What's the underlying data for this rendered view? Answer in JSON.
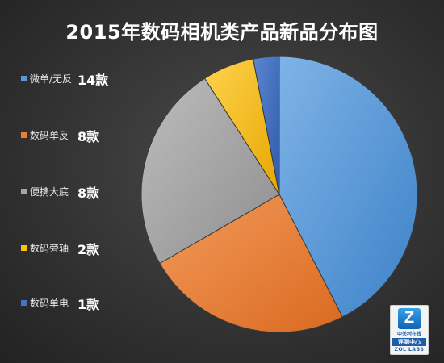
{
  "chart_data": {
    "type": "pie",
    "title": "2015年数码相机类产品新品分布图",
    "categories": [
      "微单/无反",
      "数码单反",
      "便携大底",
      "数码旁轴",
      "数码单电"
    ],
    "values": [
      14,
      8,
      8,
      2,
      1
    ],
    "value_labels": [
      "14款",
      "8款",
      "8款",
      "2款",
      "1款"
    ],
    "colors": [
      "#5b9bd5",
      "#ed7d31",
      "#a5a5a5",
      "#ffc000",
      "#4472c4"
    ],
    "legend_position": "left"
  },
  "logo": {
    "letter": "Z",
    "name": "中关村在线",
    "center": "评测中心",
    "labs": "ZOL LABS"
  }
}
